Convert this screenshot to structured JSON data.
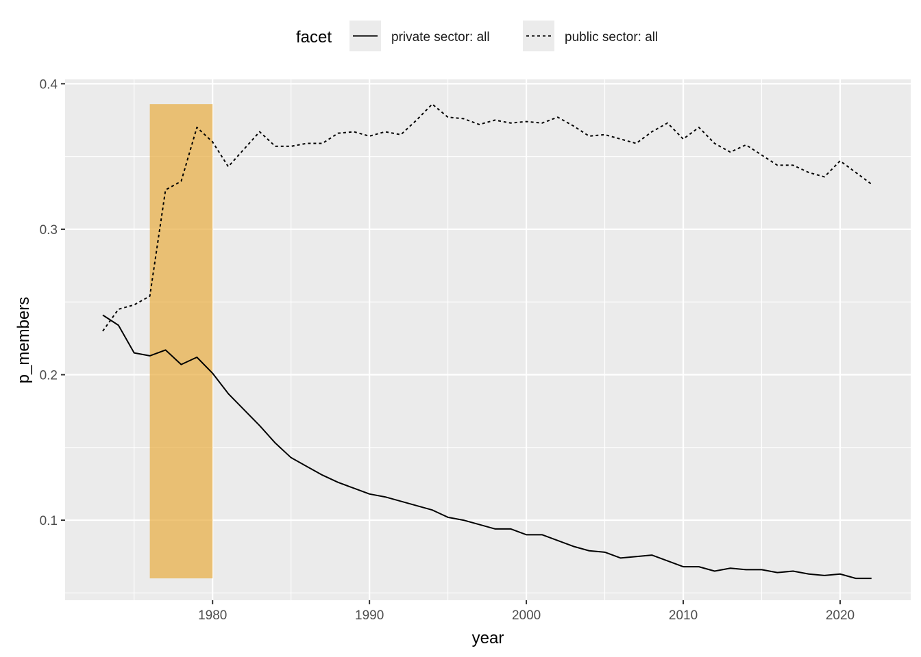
{
  "chart_data": {
    "type": "line",
    "xlabel": "year",
    "ylabel": "p_members",
    "xlim": [
      1970.6,
      2024.5
    ],
    "ylim": [
      0.045,
      0.403
    ],
    "x_ticks": [
      1980,
      1990,
      2000,
      2010,
      2020
    ],
    "x_tick_labels": [
      "1980",
      "1990",
      "2000",
      "2010",
      "2020"
    ],
    "y_ticks": [
      0.1,
      0.2,
      0.3,
      0.4
    ],
    "y_tick_labels": [
      "0.1",
      "0.2",
      "0.3",
      "0.4"
    ],
    "grid": true,
    "legend": {
      "title": "facet",
      "position": "top",
      "entries": [
        {
          "label": "private sector: all",
          "linetype": "solid"
        },
        {
          "label": "public sector: all",
          "linetype": "dotted"
        }
      ]
    },
    "highlight_band": {
      "x_start": 1976,
      "x_end": 1980,
      "y_start": 0.06,
      "y_end": 0.386,
      "color": "#E8A93A"
    },
    "series": [
      {
        "name": "private sector: all",
        "linetype": "solid",
        "color": "#000000",
        "x": [
          1973,
          1974,
          1975,
          1976,
          1977,
          1978,
          1979,
          1980,
          1981,
          1982,
          1983,
          1984,
          1985,
          1986,
          1987,
          1988,
          1989,
          1990,
          1991,
          1992,
          1993,
          1994,
          1995,
          1996,
          1997,
          1998,
          1999,
          2000,
          2001,
          2002,
          2003,
          2004,
          2005,
          2006,
          2007,
          2008,
          2009,
          2010,
          2011,
          2012,
          2013,
          2014,
          2015,
          2016,
          2017,
          2018,
          2019,
          2020,
          2021,
          2022
        ],
        "values": [
          0.241,
          0.234,
          0.215,
          0.213,
          0.217,
          0.207,
          0.212,
          0.201,
          0.187,
          0.176,
          0.165,
          0.153,
          0.143,
          0.137,
          0.131,
          0.126,
          0.122,
          0.118,
          0.116,
          0.113,
          0.11,
          0.107,
          0.102,
          0.1,
          0.097,
          0.094,
          0.094,
          0.09,
          0.09,
          0.086,
          0.082,
          0.079,
          0.078,
          0.074,
          0.075,
          0.076,
          0.072,
          0.068,
          0.068,
          0.065,
          0.067,
          0.066,
          0.066,
          0.064,
          0.065,
          0.063,
          0.062,
          0.063,
          0.06,
          0.06
        ]
      },
      {
        "name": "public sector: all",
        "linetype": "dotted",
        "color": "#000000",
        "x": [
          1973,
          1974,
          1975,
          1976,
          1977,
          1978,
          1979,
          1980,
          1981,
          1982,
          1983,
          1984,
          1985,
          1986,
          1987,
          1988,
          1989,
          1990,
          1991,
          1992,
          1993,
          1994,
          1995,
          1996,
          1997,
          1998,
          1999,
          2000,
          2001,
          2002,
          2003,
          2004,
          2005,
          2006,
          2007,
          2008,
          2009,
          2010,
          2011,
          2012,
          2013,
          2014,
          2015,
          2016,
          2017,
          2018,
          2019,
          2020,
          2021,
          2022
        ],
        "values": [
          0.23,
          0.245,
          0.248,
          0.254,
          0.327,
          0.333,
          0.37,
          0.36,
          0.343,
          0.355,
          0.367,
          0.357,
          0.357,
          0.359,
          0.359,
          0.366,
          0.367,
          0.364,
          0.367,
          0.365,
          0.375,
          0.386,
          0.377,
          0.376,
          0.372,
          0.375,
          0.373,
          0.374,
          0.373,
          0.377,
          0.371,
          0.364,
          0.365,
          0.362,
          0.359,
          0.367,
          0.373,
          0.362,
          0.37,
          0.359,
          0.353,
          0.358,
          0.351,
          0.344,
          0.344,
          0.339,
          0.336,
          0.347,
          0.339,
          0.331
        ]
      }
    ]
  }
}
